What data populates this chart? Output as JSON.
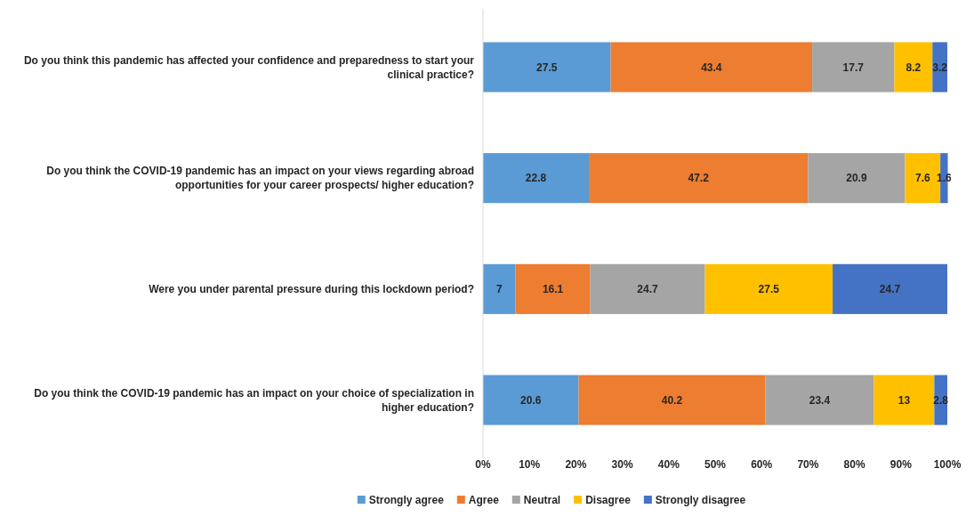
{
  "chart_data": {
    "type": "bar",
    "orientation": "horizontal",
    "stacked": true,
    "data_labels": true,
    "legend": "bottom",
    "grid": false,
    "categories": [
      "Do you think this pandemic has affected your confidence and preparedness to start your clinical practice?",
      "Do you think the COVID-19 pandemic has an impact on your views regarding abroad opportunities for your career prospects/ higher education?",
      "Were you under parental pressure during this lockdown period?",
      "Do you think the COVID-19 pandemic has an impact on your choice of specialization in higher education?"
    ],
    "xlim": [
      0,
      100
    ],
    "xticks": [
      {
        "value": 0,
        "label": "0%"
      },
      {
        "value": 10,
        "label": "10%"
      },
      {
        "value": 20,
        "label": "20%"
      },
      {
        "value": 30,
        "label": "30%"
      },
      {
        "value": 40,
        "label": "40%"
      },
      {
        "value": 50,
        "label": "50%"
      },
      {
        "value": 60,
        "label": "60%"
      },
      {
        "value": 70,
        "label": "70%"
      },
      {
        "value": 80,
        "label": "80%"
      },
      {
        "value": 90,
        "label": "90%"
      },
      {
        "value": 100,
        "label": "100%"
      }
    ],
    "series": [
      {
        "name": "Strongly agree",
        "color": "#5b9bd5",
        "values": [
          27.5,
          22.8,
          7,
          20.6
        ]
      },
      {
        "name": "Agree",
        "color": "#ed7d31",
        "values": [
          43.4,
          47.2,
          16.1,
          40.2
        ]
      },
      {
        "name": "Neutral",
        "color": "#a5a5a5",
        "values": [
          17.7,
          20.9,
          24.7,
          23.4
        ]
      },
      {
        "name": "Disagree",
        "color": "#ffc000",
        "values": [
          8.2,
          7.6,
          27.5,
          13
        ]
      },
      {
        "name": "Strongly disagree",
        "color": "#4472c4",
        "values": [
          3.2,
          1.6,
          24.7,
          2.8
        ]
      }
    ]
  }
}
